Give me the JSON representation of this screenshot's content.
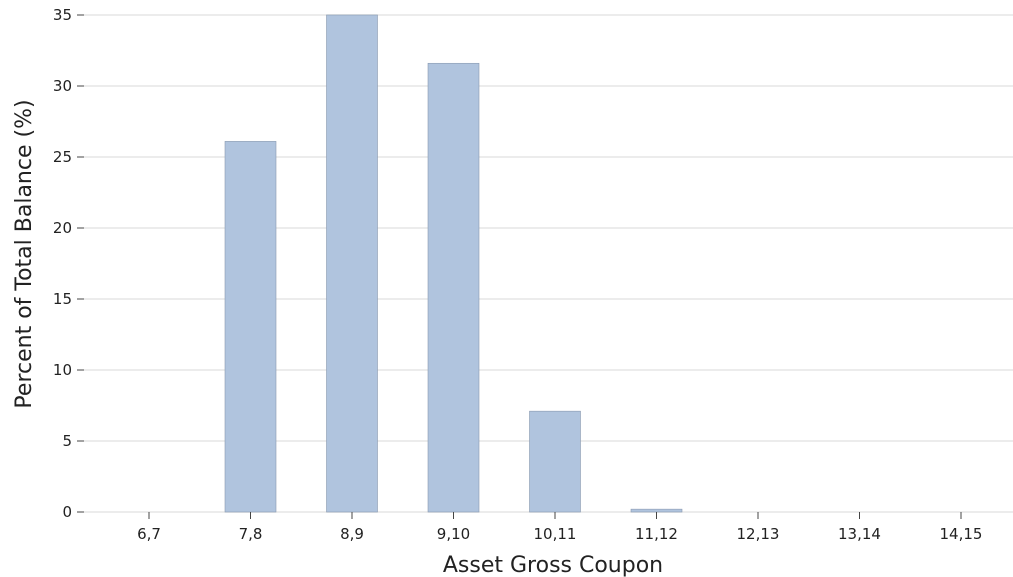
{
  "chart_data": {
    "type": "bar",
    "categories": [
      "6,7",
      "7,8",
      "8,9",
      "9,10",
      "10,11",
      "11,12",
      "12,13",
      "13,14",
      "14,15"
    ],
    "values": [
      0,
      26.1,
      35.0,
      31.6,
      7.1,
      0.2,
      0,
      0,
      0
    ],
    "xlabel": "Asset Gross Coupon",
    "ylabel": "Percent of Total Balance (%)",
    "ylim": [
      0,
      35
    ],
    "yticks": [
      0,
      5,
      10,
      15,
      20,
      25,
      30,
      35
    ],
    "grid": "horizontal",
    "legend": "none",
    "bar_color": "#b0c4de"
  }
}
